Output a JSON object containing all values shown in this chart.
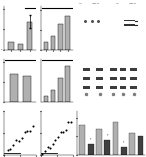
{
  "bg_color": "#f0f0f0",
  "white": "#ffffff",
  "light_gray": "#c8c8c8",
  "dark_gray": "#888888",
  "black": "#111111",
  "bar_gray": "#b0b0b0",
  "bar_dark": "#404040"
}
